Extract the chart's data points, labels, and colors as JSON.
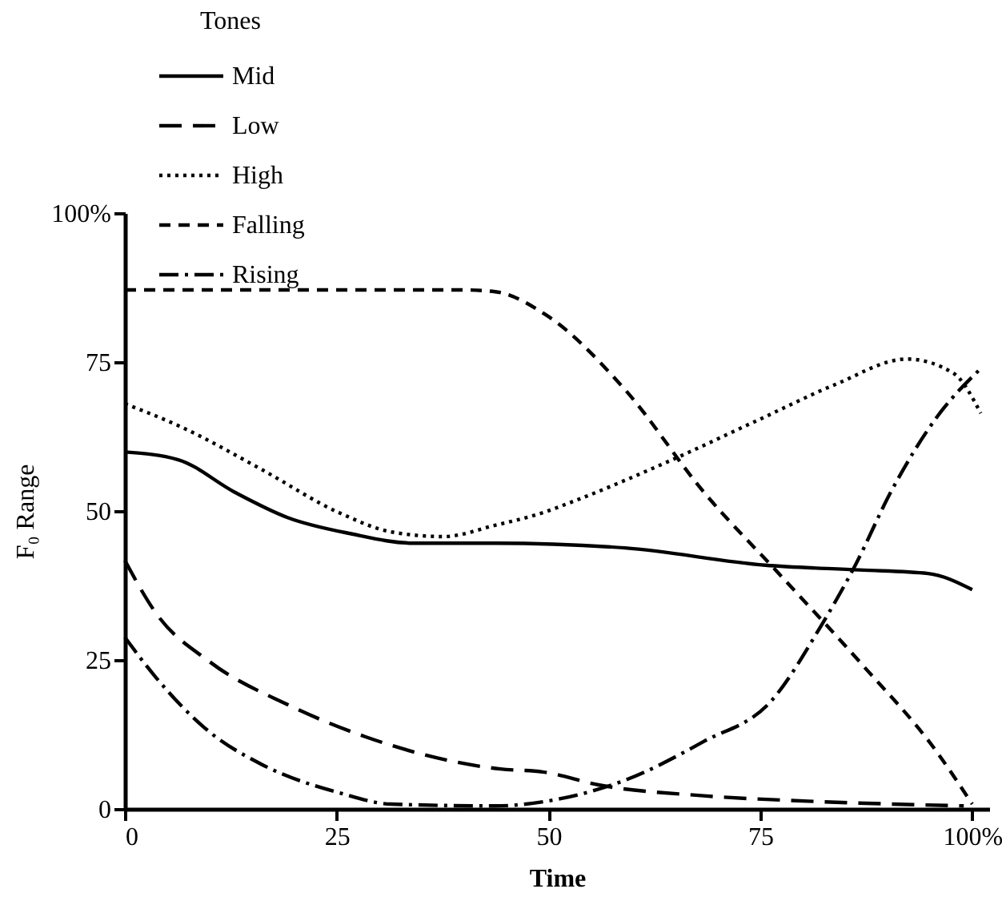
{
  "chart_data": {
    "type": "line",
    "xlabel": "Time",
    "ylabel": "F₀ Range",
    "legend_title": "Tones",
    "legend": "top left",
    "grid": false,
    "xlim": [
      0,
      102
    ],
    "ylim": [
      0,
      100
    ],
    "xticks": [
      0,
      25,
      50,
      75,
      {
        "value": 100,
        "label": "100%"
      }
    ],
    "yticks": [
      0,
      25,
      50,
      75,
      {
        "value": 100,
        "label": "100%"
      }
    ],
    "series": [
      {
        "name": "Mid",
        "color": "#000000",
        "line_style": "solid",
        "x": [
          0,
          6.3,
          12.9,
          19.2,
          26.6,
          34,
          43.7,
          59,
          75.6,
          86.7,
          94.8,
          100
        ],
        "values": [
          59.9,
          58.6,
          53.2,
          48.9,
          46.2,
          44.6,
          44.6,
          43.8,
          40.9,
          40.1,
          39.5,
          36.8
        ]
      },
      {
        "name": "Low",
        "color": "#000000",
        "line_style": "longdashed",
        "x": [
          0,
          3.7,
          10,
          19.2,
          28.4,
          44.3,
          49.3,
          56,
          68.3,
          80.6,
          99
        ],
        "values": [
          41.7,
          32.8,
          24.7,
          17.5,
          12.1,
          6.7,
          6.2,
          4,
          2.2,
          1.3,
          0.5
        ]
      },
      {
        "name": "High",
        "color": "#000000",
        "line_style": "dotted",
        "x": [
          0,
          6.8,
          16.1,
          25.3,
          31.4,
          37.6,
          43.7,
          49.3,
          52.9,
          64.6,
          74.5,
          83.8,
          92.3,
          97.8,
          101
        ],
        "values": [
          68,
          64,
          57,
          49.7,
          46.5,
          45.7,
          47.6,
          49.7,
          51.6,
          58.6,
          65.1,
          71.2,
          75.5,
          73.1,
          66.4
        ]
      },
      {
        "name": "Falling",
        "color": "#000000",
        "line_style": "dashed",
        "x": [
          0,
          20,
          40,
          43.7,
          49.8,
          59,
          68.3,
          77.5,
          86.7,
          95.9,
          100
        ],
        "values": [
          87.1,
          87.1,
          87.1,
          86.8,
          82.8,
          70.4,
          53.2,
          39,
          24.7,
          9.4,
          0.8
        ]
      },
      {
        "name": "Rising",
        "color": "#000000",
        "line_style": "dashdot",
        "x": [
          0,
          3.7,
          10,
          16.1,
          25.3,
          31.4,
          43.7,
          49.8,
          59,
          68.3,
          76.4,
          81.9,
          86.2,
          90.4,
          95.9,
          101
        ],
        "values": [
          28.8,
          22,
          12.9,
          7.5,
          2.7,
          0.8,
          0.5,
          1.3,
          4.8,
          11.3,
          18.3,
          30.1,
          40.9,
          53.2,
          65.9,
          73.9
        ]
      }
    ]
  }
}
